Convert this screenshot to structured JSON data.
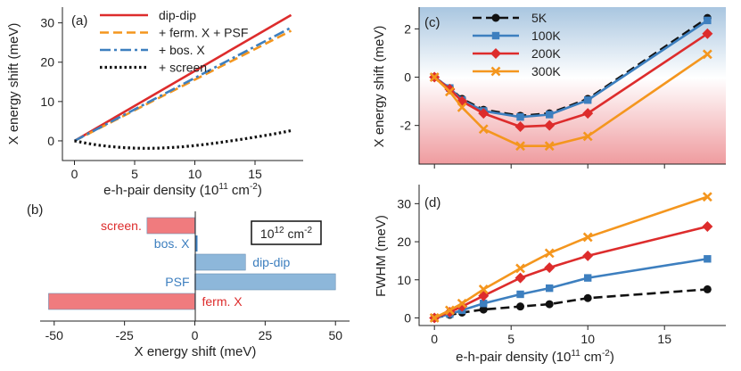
{
  "chart_data": [
    {
      "id": "a",
      "panel_label": "(a)",
      "type": "line",
      "xlabel": "e-h-pair density (10",
      "xlabel_sup": "11",
      "xlabel_unit": " cm",
      "xlabel_unit_sup": "-2",
      "xlabel_close": ")",
      "ylabel": "X energy shift (meV)",
      "xlim": [
        -1,
        19
      ],
      "ylim": [
        -5,
        34
      ],
      "xticks": [
        0,
        5,
        10,
        15
      ],
      "yticks": [
        0,
        10,
        20,
        30
      ],
      "legend_position": "top-left",
      "series": [
        {
          "name": "dip-dip",
          "color": "#dd2c2c",
          "style": "solid",
          "x": [
            0,
            18
          ],
          "y": [
            0,
            32
          ]
        },
        {
          "name": "+ ferm. X + PSF",
          "color": "#f4961e",
          "style": "dash",
          "x": [
            0,
            18
          ],
          "y": [
            0,
            28
          ]
        },
        {
          "name": "+ bos. X",
          "color": "#3d7fbf",
          "style": "dashdot",
          "x": [
            0,
            18
          ],
          "y": [
            0,
            28.8
          ]
        },
        {
          "name": "+ screen.",
          "color": "#111111",
          "style": "dot",
          "x": [
            0,
            1,
            2,
            3,
            4,
            5,
            6,
            7,
            8,
            9,
            10,
            11,
            12,
            13,
            14,
            15,
            16,
            17,
            18
          ],
          "y": [
            0,
            -0.6,
            -1.1,
            -1.45,
            -1.7,
            -1.85,
            -1.9,
            -1.85,
            -1.7,
            -1.5,
            -1.2,
            -0.85,
            -0.45,
            0,
            0.45,
            0.95,
            1.45,
            2.0,
            2.6
          ]
        }
      ]
    },
    {
      "id": "b",
      "panel_label": "(b)",
      "type": "bar",
      "orientation": "horizontal",
      "xlabel": "X energy shift (meV)",
      "xlim": [
        -55,
        55
      ],
      "xticks": [
        -50,
        -25,
        0,
        25,
        50
      ],
      "density_note": "10",
      "density_note_sup": "12",
      "density_note_unit": " cm",
      "density_note_unit_sup": "-2",
      "bars": [
        {
          "label": "screen.",
          "value": -17,
          "color": "#f07b7e",
          "label_color": "#dd2c2c",
          "label_side": "left"
        },
        {
          "label": "bos. X",
          "value": 0.7,
          "color": "#8db7da",
          "label_color": "#3d7fbf",
          "label_side": "left"
        },
        {
          "label": "dip-dip",
          "value": 18,
          "color": "#8db7da",
          "label_color": "#3d7fbf",
          "label_side": "right"
        },
        {
          "label": "PSF",
          "value": 50,
          "color": "#8db7da",
          "label_color": "#3d7fbf",
          "label_side": "left"
        },
        {
          "label": "ferm. X",
          "value": -52,
          "color": "#f07b7e",
          "label_color": "#dd2c2c",
          "label_side": "right"
        }
      ]
    },
    {
      "id": "c",
      "panel_label": "(c)",
      "type": "line",
      "ylabel": "X energy shift (meV)",
      "xlim": [
        -1,
        19
      ],
      "ylim": [
        -3.6,
        2.9
      ],
      "xticks": [
        0,
        5,
        10,
        15
      ],
      "yticks": [
        -2,
        0,
        2
      ],
      "legend_position": "top-left",
      "series": [
        {
          "name": "5K",
          "color": "#111111",
          "style": "dash",
          "marker": "circle",
          "x": [
            0,
            1,
            1.8,
            3.2,
            5.6,
            7.5,
            10,
            17.8
          ],
          "y": [
            0,
            -0.45,
            -0.9,
            -1.35,
            -1.6,
            -1.5,
            -0.9,
            2.45
          ]
        },
        {
          "name": "100K",
          "color": "#3d7fbf",
          "style": "solid",
          "marker": "square",
          "x": [
            0,
            1,
            1.8,
            3.2,
            5.6,
            7.5,
            10,
            17.8
          ],
          "y": [
            0,
            -0.45,
            -0.95,
            -1.4,
            -1.65,
            -1.55,
            -0.95,
            2.35
          ]
        },
        {
          "name": "200K",
          "color": "#dd2c2c",
          "style": "solid",
          "marker": "diamond",
          "x": [
            0,
            1,
            1.8,
            3.2,
            5.6,
            7.5,
            10,
            17.8
          ],
          "y": [
            0,
            -0.5,
            -1.0,
            -1.5,
            -2.05,
            -2.0,
            -1.5,
            1.8
          ]
        },
        {
          "name": "300K",
          "color": "#f4961e",
          "style": "solid",
          "marker": "x",
          "x": [
            0,
            1,
            1.8,
            3.2,
            5.6,
            7.5,
            10,
            17.8
          ],
          "y": [
            0,
            -0.6,
            -1.25,
            -2.15,
            -2.85,
            -2.85,
            -2.45,
            0.95
          ]
        }
      ]
    },
    {
      "id": "d",
      "panel_label": "(d)",
      "type": "line",
      "xlabel": "e-h-pair density (10",
      "xlabel_sup": "11",
      "xlabel_unit": " cm",
      "xlabel_unit_sup": "-2",
      "xlabel_close": ")",
      "ylabel": "FWHM (meV)",
      "xlim": [
        -1,
        19
      ],
      "ylim": [
        -2,
        35
      ],
      "xticks": [
        0,
        5,
        10,
        15
      ],
      "yticks": [
        0,
        10,
        20,
        30
      ],
      "series": [
        {
          "name": "5K",
          "color": "#111111",
          "style": "dash",
          "marker": "circle",
          "x": [
            0,
            1,
            1.8,
            3.2,
            5.6,
            7.5,
            10,
            17.8
          ],
          "y": [
            0,
            0.8,
            1.4,
            2.2,
            3.0,
            3.6,
            5.2,
            7.5
          ]
        },
        {
          "name": "100K",
          "color": "#3d7fbf",
          "style": "solid",
          "marker": "square",
          "x": [
            0,
            1,
            1.8,
            3.2,
            5.6,
            7.5,
            10,
            17.8
          ],
          "y": [
            0,
            1.0,
            2.0,
            3.8,
            6.2,
            7.8,
            10.5,
            15.5
          ]
        },
        {
          "name": "200K",
          "color": "#dd2c2c",
          "style": "solid",
          "marker": "diamond",
          "x": [
            0,
            1,
            1.8,
            3.2,
            5.6,
            7.5,
            10,
            17.8
          ],
          "y": [
            0,
            1.5,
            3.0,
            5.8,
            10.5,
            13.2,
            16.3,
            24.0
          ]
        },
        {
          "name": "300K",
          "color": "#f4961e",
          "style": "solid",
          "marker": "x",
          "x": [
            0,
            1,
            1.8,
            3.2,
            5.6,
            7.5,
            10,
            17.8
          ],
          "y": [
            0,
            2.0,
            3.8,
            7.5,
            13.0,
            17.0,
            21.2,
            31.8
          ]
        }
      ]
    }
  ]
}
